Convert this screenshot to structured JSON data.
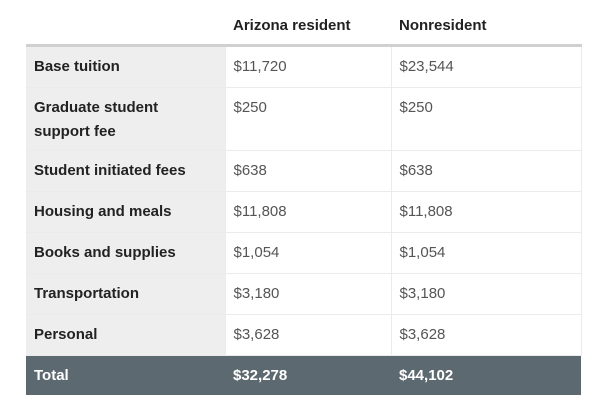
{
  "table": {
    "headers": [
      "",
      "Arizona resident",
      "Nonresident"
    ],
    "rows": [
      {
        "label": "Base tuition",
        "resident": "$11,720",
        "nonresident": "$23,544"
      },
      {
        "label": "Graduate student support fee",
        "resident": "$250",
        "nonresident": "$250"
      },
      {
        "label": "Student initiated fees",
        "resident": "$638",
        "nonresident": "$638"
      },
      {
        "label": "Housing and meals",
        "resident": "$11,808",
        "nonresident": "$11,808"
      },
      {
        "label": "Books and supplies",
        "resident": "$1,054",
        "nonresident": "$1,054"
      },
      {
        "label": "Transportation",
        "resident": "$3,180",
        "nonresident": "$3,180"
      },
      {
        "label": "Personal",
        "resident": "$3,628",
        "nonresident": "$3,628"
      }
    ],
    "total": {
      "label": "Total",
      "resident": "$32,278",
      "nonresident": "$44,102"
    }
  },
  "colors": {
    "header_text": "#222222",
    "label_background": "#eeeeee",
    "value_text": "#555555",
    "total_background": "#5d6970",
    "total_text": "#ffffff"
  }
}
